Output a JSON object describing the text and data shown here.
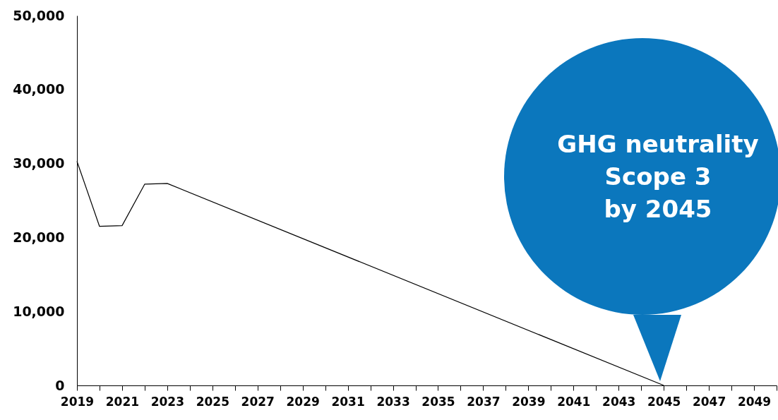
{
  "chart_data": {
    "type": "line",
    "x": [
      2019,
      2020,
      2021,
      2022,
      2023,
      2045
    ],
    "series": [
      {
        "color": "#000000",
        "values": [
          30300,
          21500,
          21600,
          27200,
          27300,
          0
        ]
      }
    ],
    "xlim": [
      2019,
      2050
    ],
    "xticks": [
      2019,
      {
        "value": 2020,
        "label": null
      },
      2021,
      {
        "value": 2022,
        "label": null
      },
      2023,
      {
        "value": 2024,
        "label": null
      },
      2025,
      {
        "value": 2026,
        "label": null
      },
      2027,
      {
        "value": 2028,
        "label": null
      },
      2029,
      {
        "value": 2030,
        "label": null
      },
      2031,
      {
        "value": 2032,
        "label": null
      },
      2033,
      {
        "value": 2034,
        "label": null
      },
      2035,
      {
        "value": 2036,
        "label": null
      },
      2037,
      {
        "value": 2038,
        "label": null
      },
      2039,
      {
        "value": 2040,
        "label": null
      },
      2041,
      {
        "value": 2042,
        "label": null
      },
      2043,
      {
        "value": 2044,
        "label": null
      },
      2045,
      {
        "value": 2046,
        "label": null
      },
      2047,
      {
        "value": 2048,
        "label": null
      },
      2049,
      {
        "value": 2050,
        "label": null
      }
    ],
    "ylim": [
      0,
      50000
    ],
    "yticks": [
      0,
      {
        "value": 10000,
        "label": "10,000"
      },
      {
        "value": 20000,
        "label": "20,000"
      },
      {
        "value": 30000,
        "label": "30,000"
      },
      {
        "value": 40000,
        "label": "40,000"
      },
      {
        "value": 50000,
        "label": "50,000"
      }
    ],
    "grid": false,
    "marker": "none",
    "line_style": "solid",
    "annotations": [
      "GHG neutrality\nScope 3\nby 2045"
    ]
  }
}
